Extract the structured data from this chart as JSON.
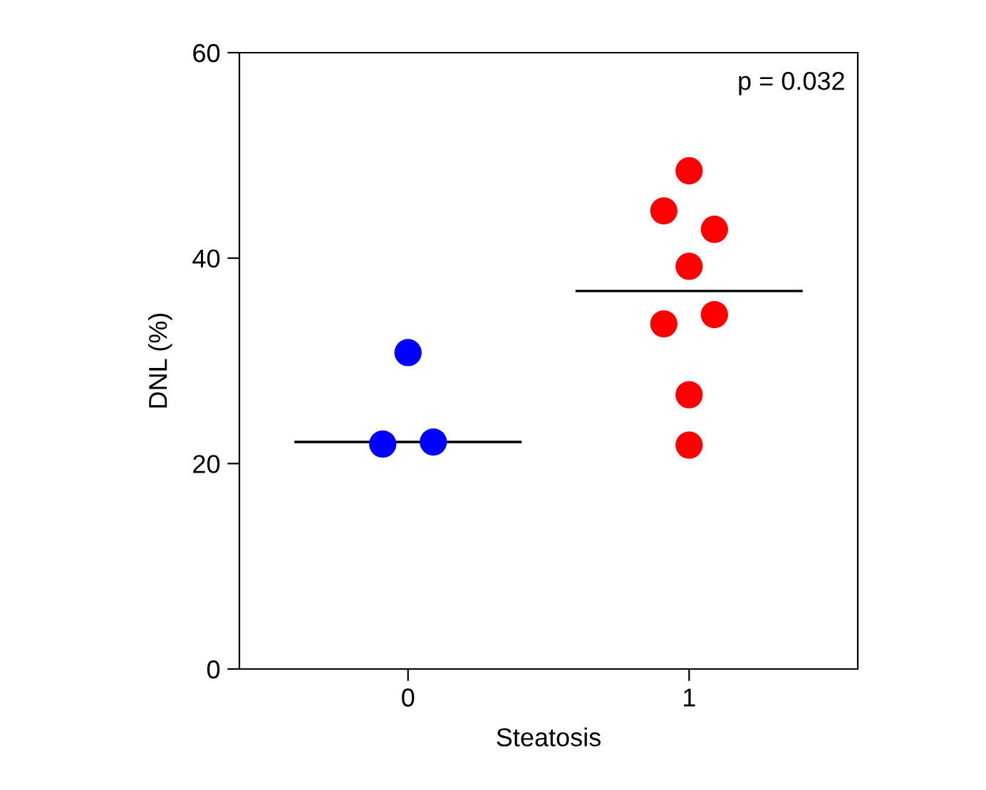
{
  "chart_data": {
    "type": "scatter",
    "xlabel": "Steatosis",
    "ylabel": "DNL (%)",
    "xlim": [
      -0.6,
      1.6
    ],
    "xticks": [
      0,
      1
    ],
    "ylim": [
      0,
      60
    ],
    "yticks": [
      0,
      20,
      40,
      60
    ],
    "grid": false,
    "legend": false,
    "marker": "circle",
    "annotations": [
      "p = 0.032"
    ],
    "series": [
      {
        "color": "#0000ff",
        "x": [
          0,
          -0.09,
          0.09
        ],
        "values": [
          30.8,
          21.9,
          22.1
        ]
      },
      {
        "color": "#ff0000",
        "x": [
          1,
          0.91,
          1.09,
          1,
          0.91,
          1.09,
          1,
          1
        ],
        "values": [
          48.5,
          44.6,
          42.8,
          39.2,
          33.6,
          34.5,
          26.7,
          21.8
        ]
      },
      {
        "type": "line",
        "color": "#000000",
        "marker": "none",
        "x": [
          -0.4,
          0.4
        ],
        "values": [
          22.1,
          22.1
        ]
      },
      {
        "type": "line",
        "color": "#000000",
        "marker": "none",
        "x": [
          0.6,
          1.4
        ],
        "values": [
          36.8,
          36.8
        ]
      }
    ]
  }
}
